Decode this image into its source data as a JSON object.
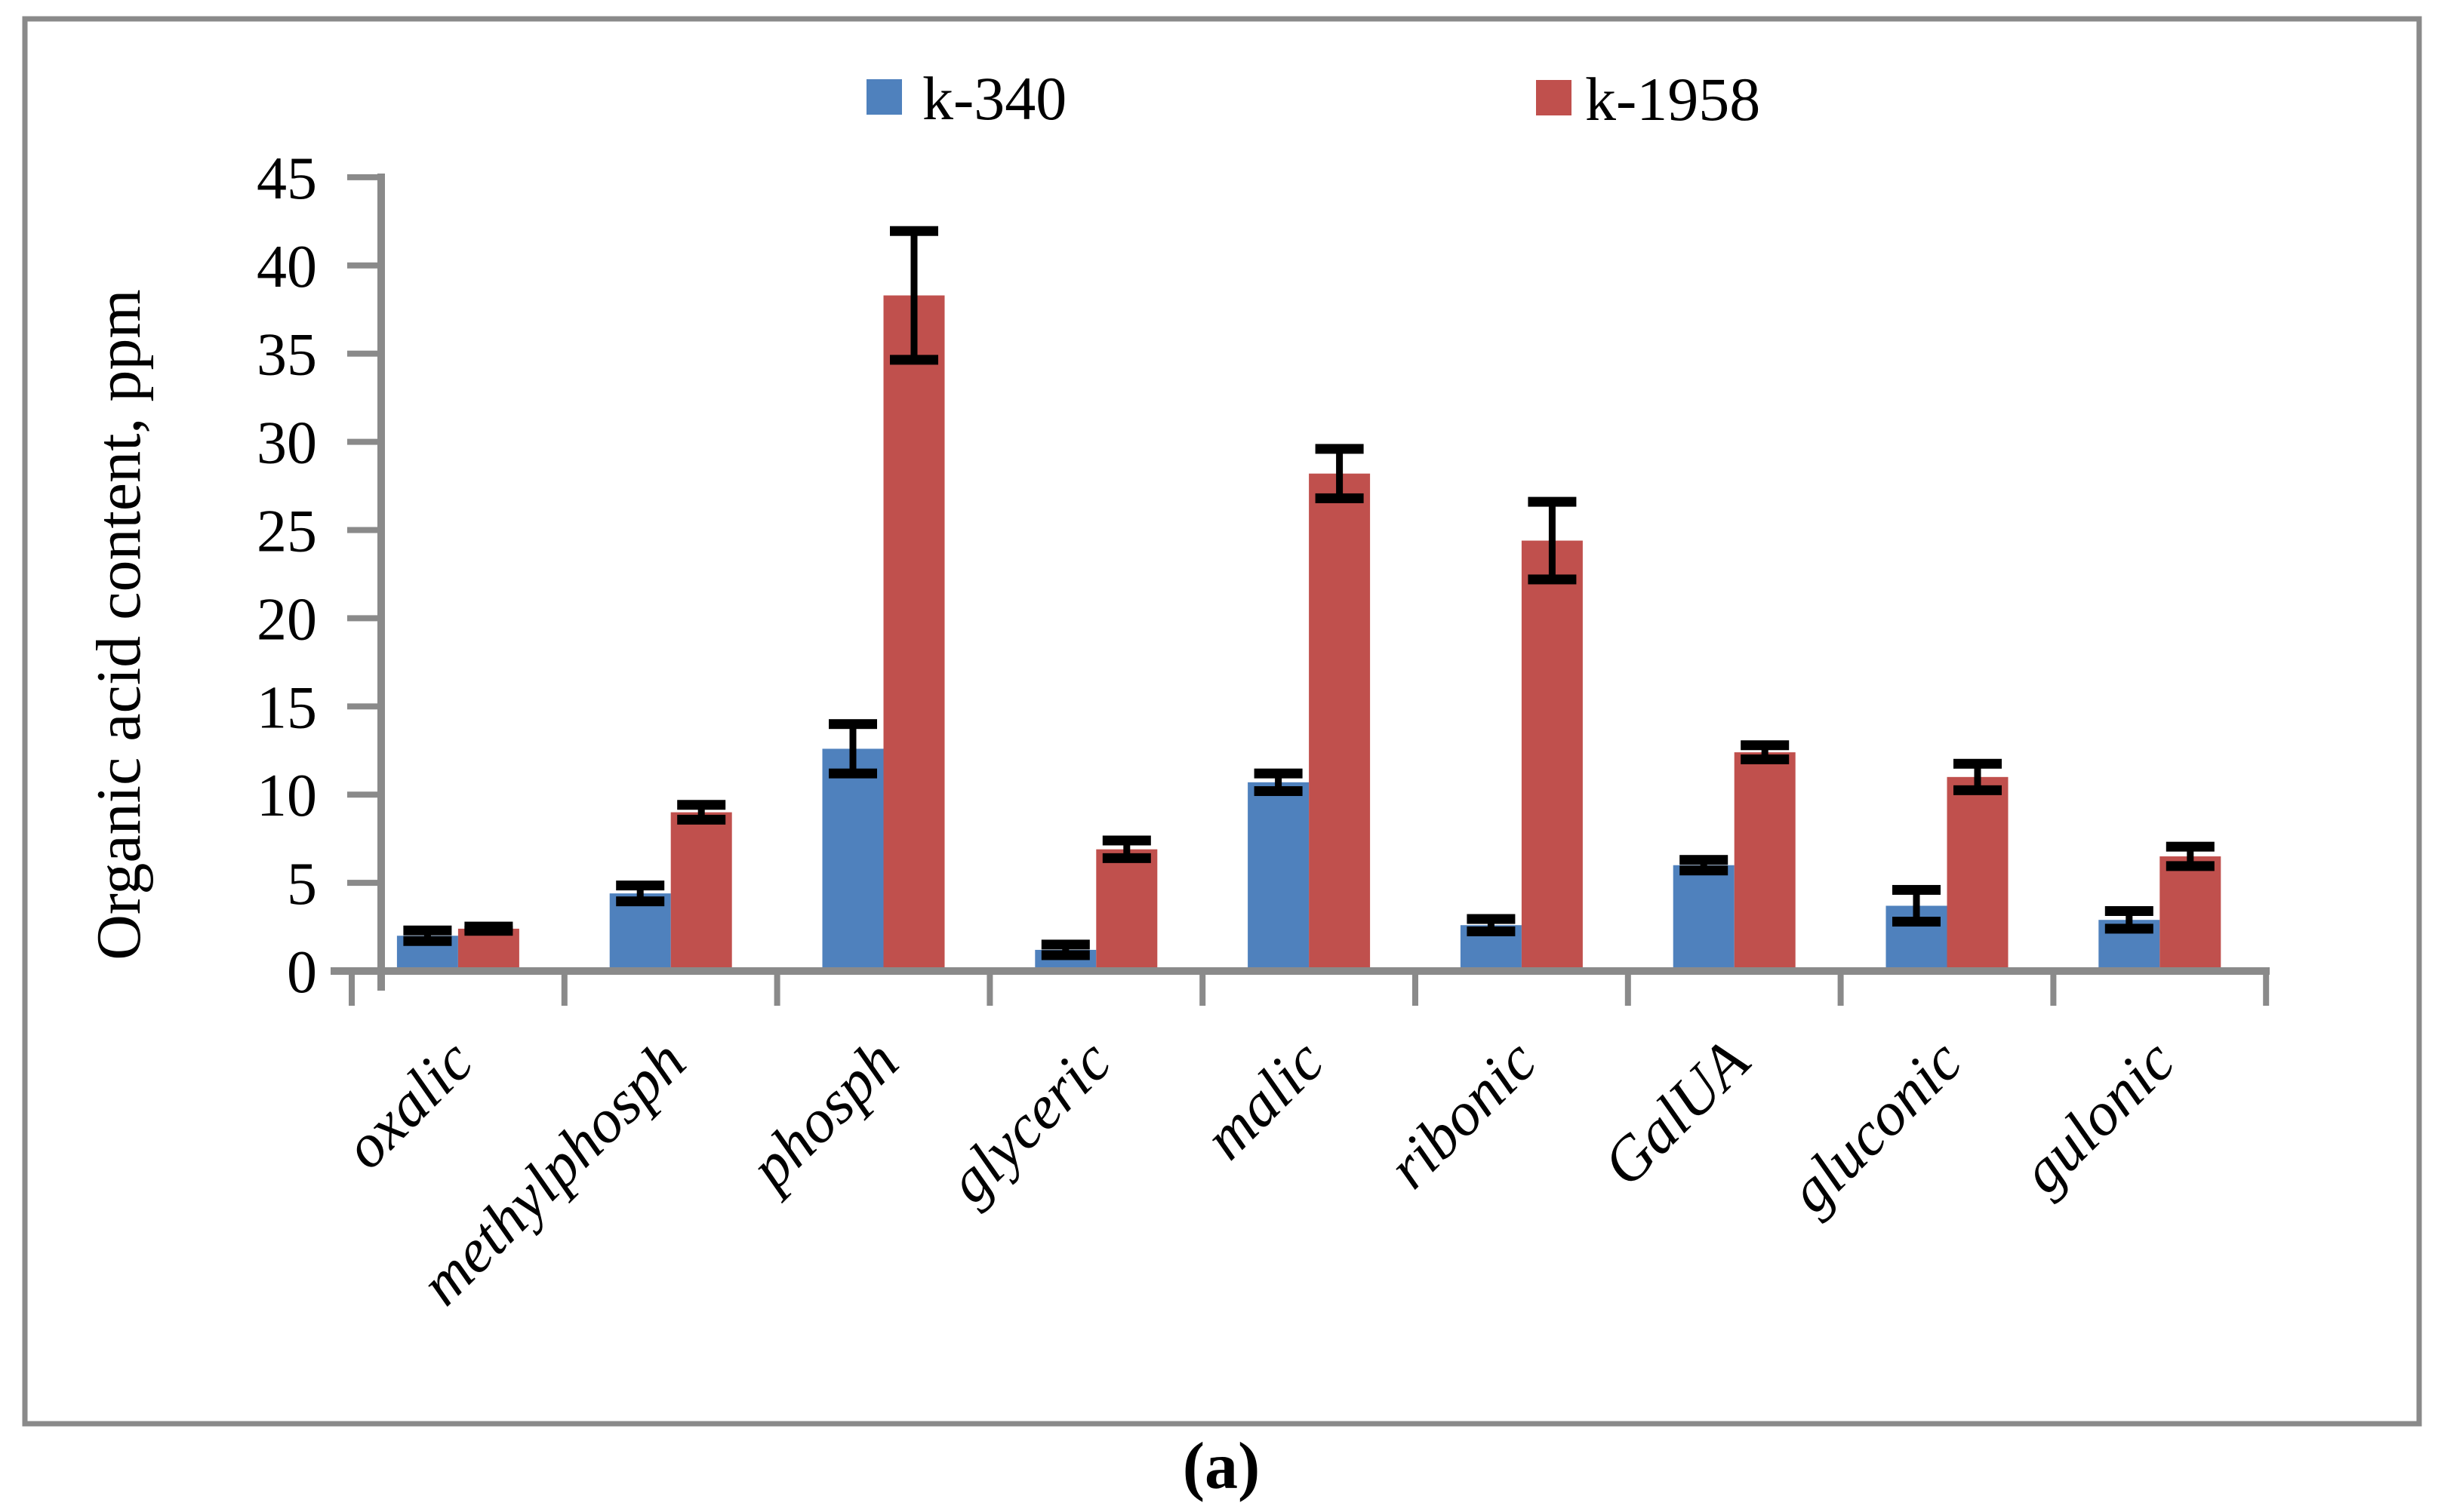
{
  "figure": {
    "caption": "(a)"
  },
  "legend": {
    "items": [
      {
        "label": "k-340",
        "color": "#4F81BD"
      },
      {
        "label": "k-1958",
        "color": "#C0504D"
      }
    ]
  },
  "chart_data": {
    "type": "bar",
    "title": "",
    "xlabel": "",
    "ylabel": "Organic acid content, ppm",
    "ylim": [
      0,
      45
    ],
    "yticks": [
      0,
      5,
      10,
      15,
      20,
      25,
      30,
      35,
      40,
      45
    ],
    "grid": false,
    "legend_position": "top",
    "error_bars": true,
    "categories": [
      "oxalic",
      "methylphosph",
      "phosph",
      "glyceric",
      "malic",
      "ribonic",
      "GalUA",
      "gluconic",
      "gulonic"
    ],
    "series": [
      {
        "name": "k-340",
        "color": "#4F81BD",
        "values": [
          2.0,
          4.4,
          12.6,
          1.2,
          10.7,
          2.6,
          6.0,
          3.7,
          2.9
        ],
        "errors": [
          0.3,
          0.45,
          1.4,
          0.3,
          0.5,
          0.35,
          0.3,
          0.9,
          0.5
        ]
      },
      {
        "name": "k-1958",
        "color": "#C0504D",
        "values": [
          2.4,
          9.0,
          38.3,
          6.9,
          28.2,
          24.4,
          12.4,
          11.0,
          6.5
        ],
        "errors": [
          0.12,
          0.42,
          3.65,
          0.5,
          1.4,
          2.2,
          0.4,
          0.75,
          0.55
        ]
      }
    ]
  },
  "colors": {
    "axis": "#8A8A8A",
    "border": "#8A8A8A",
    "error_bar": "#000000"
  }
}
